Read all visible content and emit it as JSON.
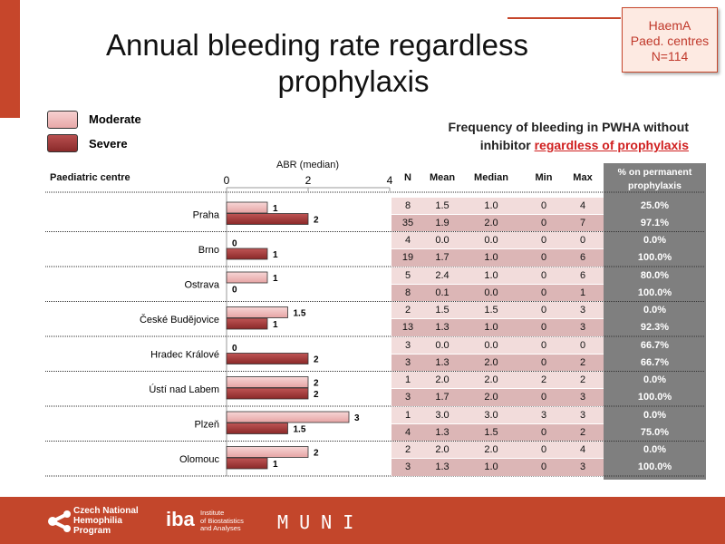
{
  "header": {
    "title_line1": "Annual bleeding rate regardless",
    "title_line2": "prophylaxis"
  },
  "badge": {
    "line1": "HaemA",
    "line2": "Paed. centres",
    "line3": "N=114"
  },
  "legend": [
    {
      "label": "Moderate",
      "color": "#ebb0b0"
    },
    {
      "label": "Severe",
      "color": "#a43a3a"
    }
  ],
  "subtitle": {
    "line1": "Frequency of bleeding in PWHA without",
    "line2_prefix": "inhibitor ",
    "line2_highlight": "regardless of prophylaxis"
  },
  "table": {
    "headers": [
      "N",
      "Mean",
      "Median",
      "Min",
      "Max"
    ],
    "pct_header_1": "% on permanent",
    "pct_header_2": "prophylaxis",
    "rows": [
      [
        "8",
        "1.5",
        "1.0",
        "0",
        "4",
        "25.0%"
      ],
      [
        "35",
        "1.9",
        "2.0",
        "0",
        "7",
        "97.1%"
      ],
      [
        "4",
        "0.0",
        "0.0",
        "0",
        "0",
        "0.0%"
      ],
      [
        "19",
        "1.7",
        "1.0",
        "0",
        "6",
        "100.0%"
      ],
      [
        "5",
        "2.4",
        "1.0",
        "0",
        "6",
        "80.0%"
      ],
      [
        "8",
        "0.1",
        "0.0",
        "0",
        "1",
        "100.0%"
      ],
      [
        "2",
        "1.5",
        "1.5",
        "0",
        "3",
        "0.0%"
      ],
      [
        "13",
        "1.3",
        "1.0",
        "0",
        "3",
        "92.3%"
      ],
      [
        "3",
        "0.0",
        "0.0",
        "0",
        "0",
        "66.7%"
      ],
      [
        "3",
        "1.3",
        "2.0",
        "0",
        "2",
        "66.7%"
      ],
      [
        "1",
        "2.0",
        "2.0",
        "2",
        "2",
        "0.0%"
      ],
      [
        "3",
        "1.7",
        "2.0",
        "0",
        "3",
        "100.0%"
      ],
      [
        "1",
        "3.0",
        "3.0",
        "3",
        "3",
        "0.0%"
      ],
      [
        "4",
        "1.3",
        "1.5",
        "0",
        "2",
        "75.0%"
      ],
      [
        "2",
        "2.0",
        "2.0",
        "0",
        "4",
        "0.0%"
      ],
      [
        "3",
        "1.3",
        "1.0",
        "0",
        "3",
        "100.0%"
      ]
    ]
  },
  "chart_data": {
    "type": "bar",
    "orientation": "horizontal",
    "xlabel": "ABR (median)",
    "category_header": "Paediatric centre",
    "xlim": [
      0,
      4
    ],
    "xticks": [
      "0",
      "2",
      "4"
    ],
    "categories": [
      "Praha",
      "Brno",
      "Ostrava",
      "České Budějovice",
      "Hradec Králové",
      "Ústí nad Labem",
      "Plzeň",
      "Olomouc"
    ],
    "series": [
      {
        "name": "Moderate",
        "values": [
          1,
          0,
          1,
          1.5,
          0,
          2,
          3,
          2
        ],
        "labels": [
          "1",
          "0",
          "1",
          "1.5",
          "0",
          "2",
          "3",
          "2"
        ]
      },
      {
        "name": "Severe",
        "values": [
          2,
          1,
          0,
          1,
          2,
          2,
          1.5,
          1
        ],
        "labels": [
          "2",
          "1",
          "0",
          "1",
          "2",
          "2",
          "1.5",
          "1"
        ]
      }
    ]
  },
  "footer": {
    "cnhp_1": "Czech National",
    "cnhp_2": "Hemophilia",
    "cnhp_3": "Program",
    "iba_logo": "iba",
    "iba_1": "Institute",
    "iba_2": "of Biostatistics",
    "iba_3": "and Analyses",
    "muni": "M U N I"
  }
}
